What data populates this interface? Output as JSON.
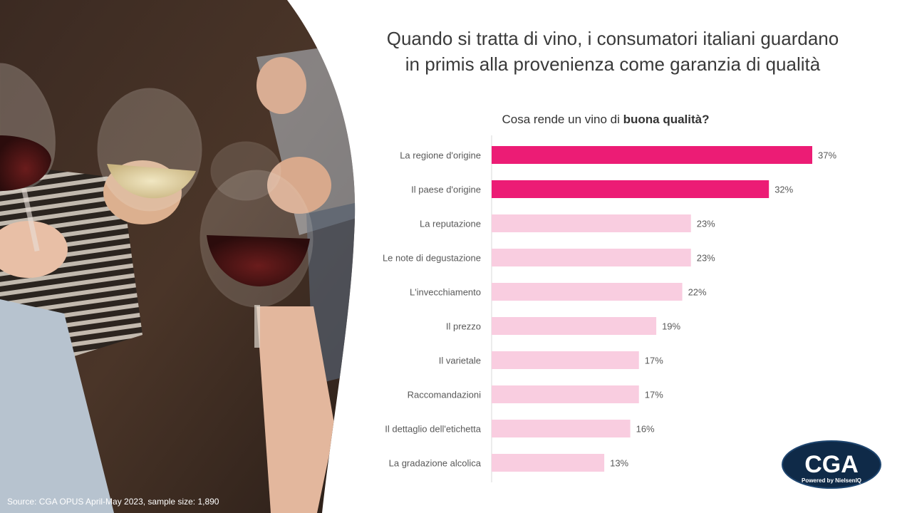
{
  "title_lines": [
    "Quando si tratta di vino, i consumatori italiani guardano",
    "in primis alla provenienza come garanzia di qualità"
  ],
  "subtitle": {
    "prefix": "Cosa rende un vino di ",
    "bold": "buona qualità?"
  },
  "source": "Source: CGA OPUS April-May 2023, sample size: 1,890",
  "logo": {
    "main": "CGA",
    "tagline": "Powered by NielsenIQ"
  },
  "colors": {
    "highlight": "#ec1c75",
    "base": "#f9cde0"
  },
  "chart_data": {
    "type": "bar",
    "orientation": "horizontal",
    "categories": [
      "La regione d'origine",
      "Il paese d'origine",
      "La reputazione",
      "Le note di degustazione",
      "L'invecchiamento",
      "Il prezzo",
      "Il varietale",
      "Raccomandazioni",
      "Il dettaglio dell'etichetta",
      "La gradazione alcolica"
    ],
    "values": [
      37,
      32,
      23,
      23,
      22,
      19,
      17,
      17,
      16,
      13
    ],
    "labels": [
      "37%",
      "32%",
      "23%",
      "23%",
      "22%",
      "19%",
      "17%",
      "17%",
      "16%",
      "13%"
    ],
    "highlighted": [
      true,
      true,
      false,
      false,
      false,
      false,
      false,
      false,
      false,
      false
    ],
    "unit": "%",
    "xlim": [
      0,
      37
    ],
    "grid": false
  }
}
